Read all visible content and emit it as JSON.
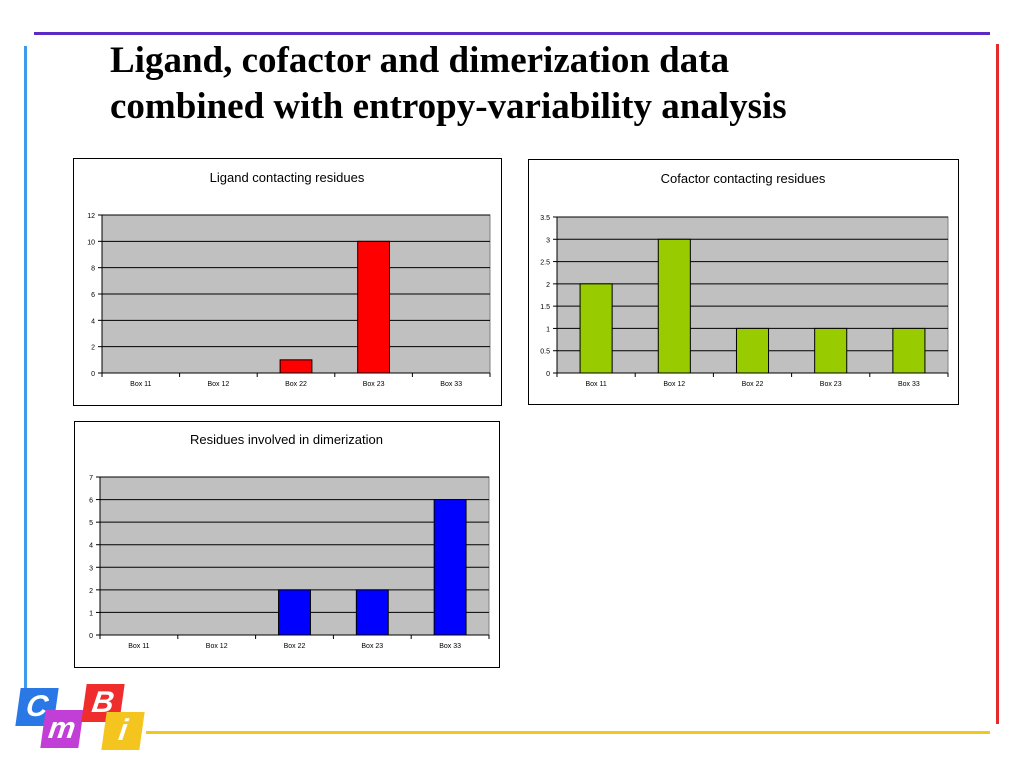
{
  "slide": {
    "title_line1": "Ligand, cofactor and dimerization data",
    "title_line2": "combined with entropy-variability analysis"
  },
  "logo": {
    "letters": [
      "C",
      "m",
      "B",
      "i"
    ],
    "colors": [
      "#2a77e6",
      "#c13fd6",
      "#ef2d2d",
      "#f5c51f"
    ]
  },
  "chart_data": [
    {
      "type": "bar",
      "title": "Ligand contacting residues",
      "categories": [
        "Box 11",
        "Box 12",
        "Box 22",
        "Box 23",
        "Box 33"
      ],
      "values": [
        0,
        0,
        1,
        10,
        0
      ],
      "ylim": [
        0,
        12
      ],
      "yticks": [
        0,
        2,
        4,
        6,
        8,
        10,
        12
      ],
      "ytick_labels": [
        "0",
        "2",
        "4",
        "6",
        "8",
        "10",
        "12"
      ],
      "bar_color": "#ff0000",
      "plot_bg": "#c0c0c0",
      "grid": true,
      "legend": "none"
    },
    {
      "type": "bar",
      "title": "Cofactor contacting residues",
      "categories": [
        "Box 11",
        "Box 12",
        "Box 22",
        "Box 23",
        "Box 33"
      ],
      "values": [
        2,
        3,
        1,
        1,
        1
      ],
      "ylim": [
        0,
        3.5
      ],
      "yticks": [
        0,
        0.5,
        1,
        1.5,
        2,
        2.5,
        3,
        3.5
      ],
      "ytick_labels": [
        "0",
        "0.5",
        "1",
        "1.5",
        "2",
        "2.5",
        "3",
        "3.5"
      ],
      "bar_color": "#99cc00",
      "plot_bg": "#c0c0c0",
      "grid": true,
      "legend": "none"
    },
    {
      "type": "bar",
      "title": "Residues involved in dimerization",
      "categories": [
        "Box 11",
        "Box 12",
        "Box 22",
        "Box 23",
        "Box 33"
      ],
      "values": [
        0,
        0,
        2,
        2,
        6
      ],
      "ylim": [
        0,
        7
      ],
      "yticks": [
        0,
        1,
        2,
        3,
        4,
        5,
        6,
        7
      ],
      "ytick_labels": [
        "0",
        "1",
        "2",
        "3",
        "4",
        "5",
        "6",
        "7"
      ],
      "bar_color": "#0000ff",
      "plot_bg": "#c0c0c0",
      "grid": true,
      "legend": "none"
    }
  ]
}
